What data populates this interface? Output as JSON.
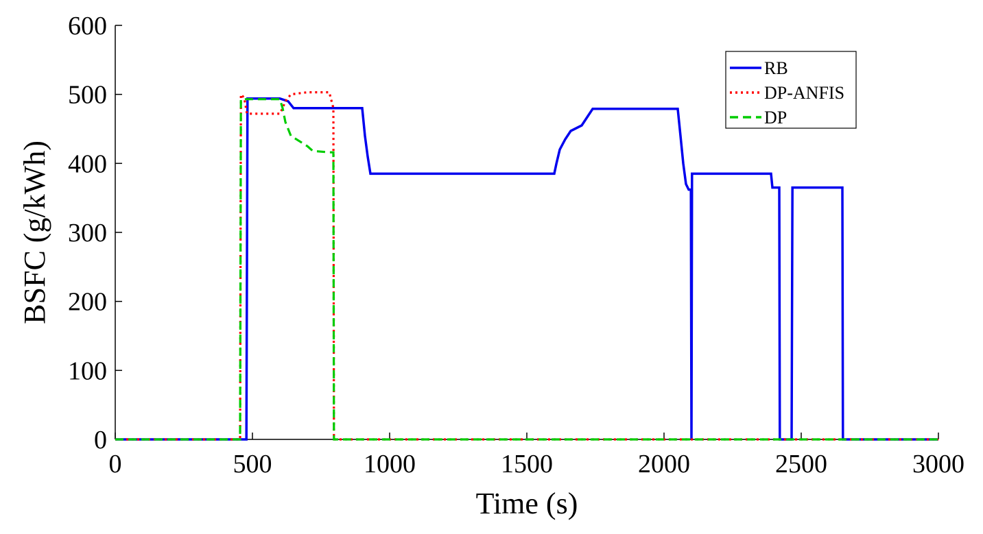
{
  "chart_data": {
    "type": "line",
    "title": "",
    "xlabel": "Time (s)",
    "ylabel": "BSFC (g/kWh)",
    "xlim": [
      0,
      3000
    ],
    "ylim": [
      0,
      600
    ],
    "xticks": [
      "0",
      "500",
      "1000",
      "1500",
      "2000",
      "2500",
      "3000"
    ],
    "yticks": [
      "0",
      "100",
      "200",
      "300",
      "400",
      "500",
      "600"
    ],
    "grid": false,
    "legend_position": "top-right",
    "series": [
      {
        "name": "RB",
        "color": "#0000ee",
        "style": "solid",
        "x": [
          0,
          478,
          482,
          600,
          630,
          650,
          900,
          910,
          920,
          930,
          1600,
          1608,
          1620,
          1640,
          1660,
          1700,
          1720,
          1740,
          1750,
          2050,
          2060,
          2070,
          2080,
          2090,
          2098,
          2100,
          2102,
          2110,
          2390,
          2395,
          2420,
          2422,
          2465,
          2468,
          2650,
          2652,
          3000
        ],
        "y": [
          0,
          0,
          494,
          494,
          490,
          480,
          480,
          440,
          410,
          385,
          385,
          400,
          420,
          435,
          447,
          455,
          467,
          479,
          479,
          479,
          440,
          400,
          370,
          362,
          362,
          0,
          385,
          385,
          385,
          365,
          365,
          0,
          0,
          365,
          365,
          0,
          0
        ]
      },
      {
        "name": "DP-ANFIS",
        "color": "#ff0000",
        "style": "dotted",
        "x": [
          0,
          455,
          458,
          470,
          480,
          600,
          610,
          620,
          640,
          700,
          780,
          795,
          797,
          3000
        ],
        "y": [
          0,
          0,
          500,
          495,
          472,
          472,
          480,
          490,
          500,
          503,
          503,
          480,
          0,
          0
        ]
      },
      {
        "name": "DP",
        "color": "#00cc00",
        "style": "dashed",
        "x": [
          0,
          455,
          458,
          600,
          610,
          620,
          640,
          700,
          720,
          780,
          795,
          797,
          3000
        ],
        "y": [
          0,
          0,
          493,
          493,
          480,
          460,
          440,
          425,
          418,
          416,
          416,
          0,
          0
        ]
      }
    ]
  }
}
